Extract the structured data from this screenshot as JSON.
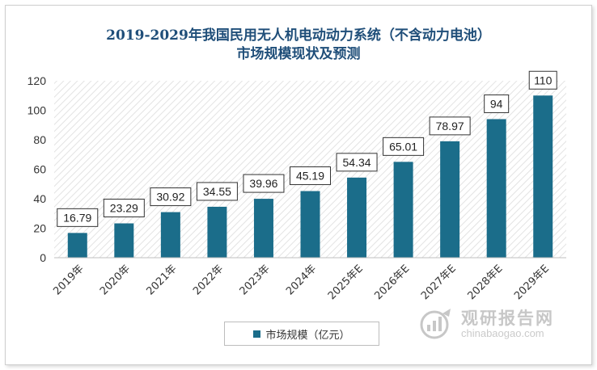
{
  "chart_data": {
    "type": "bar",
    "title_line1": "2019-2029年我国民用无人机电动动力系统（不含动力电池）",
    "title_line2": "市场规模现状及预测",
    "categories": [
      "2019年",
      "2020年",
      "2021年",
      "2022年",
      "2023年",
      "2024年",
      "2025年E",
      "2026年E",
      "2027年E",
      "2028年E",
      "2029年E"
    ],
    "series": [
      {
        "name": "市场规模（亿元）",
        "values": [
          16.79,
          23.29,
          30.92,
          34.55,
          39.96,
          45.19,
          54.34,
          65.01,
          78.97,
          94,
          110
        ],
        "labels": [
          "16.79",
          "23.29",
          "30.92",
          "34.55",
          "39.96",
          "45.19",
          "54.34",
          "65.01",
          "78.97",
          "94",
          "110"
        ],
        "color": "#1b6d8a"
      }
    ],
    "xlabel": "",
    "ylabel": "",
    "ylim": [
      0,
      120
    ],
    "yticks": [
      0,
      20,
      40,
      60,
      80,
      100,
      120
    ],
    "grid": false,
    "plot_background": "diagonal-hatch",
    "legend_position": "bottom"
  },
  "watermark": {
    "text_cn": "观研报告网",
    "text_en": "chinabaogao.com"
  }
}
